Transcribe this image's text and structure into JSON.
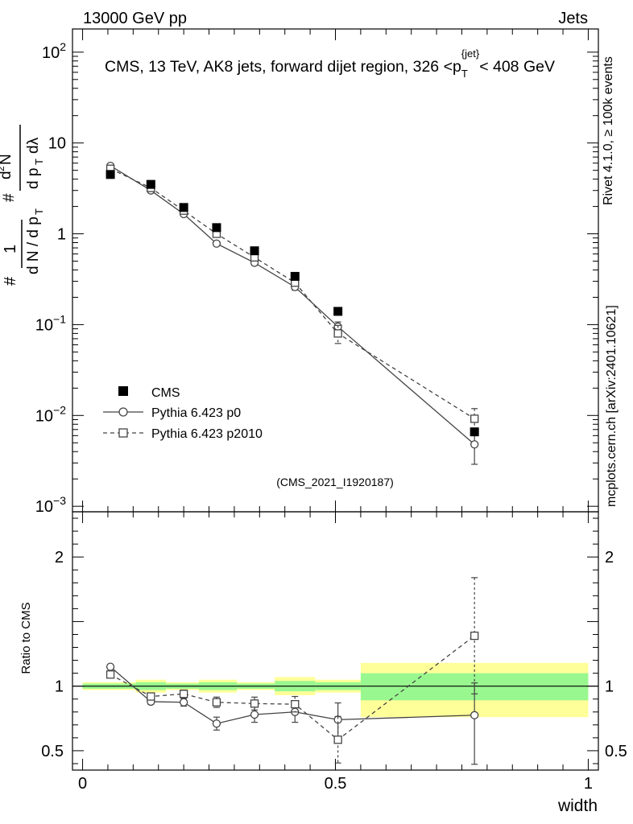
{
  "header": {
    "left": "13000 GeV pp",
    "right": "Jets"
  },
  "side_labels": {
    "rivet": "Rivet 4.1.0, ≥ 100k events",
    "mcplots": "mcplots.cern.ch [arXiv:2401.10621]"
  },
  "chart_data": [
    {
      "type": "scatter",
      "panel": "main",
      "title": "CMS, 13 TeV, AK8 jets, forward dijet region, 326 <p_T^{jet}< 408 GeV",
      "title_parts": {
        "pre": "CMS, 13 TeV, AK8 jets, forward dijet region, 326 <p",
        "sub": "T",
        "sup": "{jet}",
        "post": "< 408 GeV"
      },
      "ylabel": "1/dN/dp_T d²N/dp_T dλ",
      "yscale": "log",
      "ylim": [
        0.00087,
        180
      ],
      "xlim": [
        -0.02,
        1.02
      ],
      "y_ticks": [
        {
          "value": 100,
          "base": "10",
          "exp": "2"
        },
        {
          "value": 10,
          "base": "10",
          "exp": ""
        },
        {
          "value": 1,
          "base": "1",
          "exp": ""
        },
        {
          "value": 0.1,
          "base": "10",
          "exp": "−1"
        },
        {
          "value": 0.01,
          "base": "10",
          "exp": "−2"
        },
        {
          "value": 0.001,
          "base": "10",
          "exp": "−3"
        }
      ],
      "legend": [
        {
          "label": "CMS",
          "style": "filled-square"
        },
        {
          "label": "Pythia 6.423 p0",
          "style": "solid-circle"
        },
        {
          "label": "Pythia 6.423 p2010",
          "style": "dashed-square"
        }
      ],
      "watermark": "(CMS_2021_I1920187)",
      "series": [
        {
          "name": "CMS",
          "x": [
            0.055,
            0.135,
            0.2,
            0.265,
            0.34,
            0.42,
            0.505,
            0.775
          ],
          "y": [
            4.5,
            3.5,
            1.95,
            1.17,
            0.65,
            0.34,
            0.14,
            0.0066
          ],
          "err_lo": [
            0,
            0,
            0,
            0,
            0,
            0,
            0,
            0
          ],
          "err_hi": [
            0,
            0,
            0,
            0,
            0,
            0,
            0,
            0
          ]
        },
        {
          "name": "Pythia 6.423 p0",
          "x": [
            0.055,
            0.135,
            0.2,
            0.265,
            0.34,
            0.42,
            0.505,
            0.775
          ],
          "y": [
            5.6,
            3.0,
            1.65,
            0.78,
            0.48,
            0.26,
            0.095,
            0.0048
          ],
          "err_lo": [
            0.1,
            0.07,
            0.05,
            0.04,
            0.03,
            0.02,
            0.012,
            0.0019
          ],
          "err_hi": [
            0.1,
            0.07,
            0.05,
            0.04,
            0.03,
            0.02,
            0.012,
            0.0019
          ]
        },
        {
          "name": "Pythia 6.423 p2010",
          "x": [
            0.055,
            0.135,
            0.2,
            0.265,
            0.34,
            0.42,
            0.505,
            0.775
          ],
          "y": [
            5.2,
            3.2,
            1.8,
            1.0,
            0.55,
            0.29,
            0.08,
            0.0092
          ],
          "err_lo": [
            0.1,
            0.07,
            0.05,
            0.04,
            0.03,
            0.02,
            0.018,
            0.0027
          ],
          "err_hi": [
            0.1,
            0.07,
            0.05,
            0.04,
            0.03,
            0.02,
            0.018,
            0.0027
          ]
        }
      ]
    },
    {
      "type": "scatter",
      "panel": "ratio",
      "ylabel": "Ratio to CMS",
      "xlabel": "width",
      "ylim": [
        0.35,
        2.35
      ],
      "xlim": [
        -0.02,
        1.02
      ],
      "y_ticks": [
        {
          "value": 0.5,
          "label": "0.5"
        },
        {
          "value": 1,
          "label": "1"
        },
        {
          "value": 2,
          "label": "2"
        }
      ],
      "x_ticks": [
        {
          "value": 0,
          "label": "0"
        },
        {
          "value": 0.5,
          "label": "0.5"
        },
        {
          "value": 1,
          "label": "1"
        }
      ],
      "bands": [
        {
          "x0": 0.0,
          "x1": 0.105,
          "in_lo": 0.98,
          "in_hi": 1.02,
          "out_lo": 0.97,
          "out_hi": 1.03
        },
        {
          "x0": 0.105,
          "x1": 0.165,
          "in_lo": 0.97,
          "in_hi": 1.03,
          "out_lo": 0.95,
          "out_hi": 1.05
        },
        {
          "x0": 0.165,
          "x1": 0.23,
          "in_lo": 0.98,
          "in_hi": 1.02,
          "out_lo": 0.97,
          "out_hi": 1.03
        },
        {
          "x0": 0.23,
          "x1": 0.305,
          "in_lo": 0.97,
          "in_hi": 1.03,
          "out_lo": 0.95,
          "out_hi": 1.05
        },
        {
          "x0": 0.305,
          "x1": 0.38,
          "in_lo": 0.98,
          "in_hi": 1.02,
          "out_lo": 0.97,
          "out_hi": 1.03
        },
        {
          "x0": 0.38,
          "x1": 0.46,
          "in_lo": 0.96,
          "in_hi": 1.04,
          "out_lo": 0.93,
          "out_hi": 1.07
        },
        {
          "x0": 0.46,
          "x1": 0.55,
          "in_lo": 0.97,
          "in_hi": 1.03,
          "out_lo": 0.95,
          "out_hi": 1.05
        },
        {
          "x0": 0.55,
          "x1": 1.0,
          "in_lo": 0.89,
          "in_hi": 1.1,
          "out_lo": 0.76,
          "out_hi": 1.18
        }
      ],
      "series": [
        {
          "name": "Pythia 6.423 p0",
          "x": [
            0.055,
            0.135,
            0.2,
            0.265,
            0.34,
            0.42,
            0.505,
            0.775
          ],
          "y": [
            1.15,
            0.88,
            0.875,
            0.71,
            0.78,
            0.8,
            0.74,
            0.775
          ],
          "err_lo": [
            0.015,
            0.02,
            0.03,
            0.05,
            0.06,
            0.08,
            0.13,
            0.38
          ],
          "err_hi": [
            0.015,
            0.02,
            0.03,
            0.05,
            0.06,
            0.08,
            0.13,
            0.25
          ]
        },
        {
          "name": "Pythia 6.423 p2010",
          "x": [
            0.055,
            0.135,
            0.2,
            0.265,
            0.34,
            0.42,
            0.505,
            0.775
          ],
          "y": [
            1.09,
            0.92,
            0.94,
            0.875,
            0.865,
            0.86,
            0.585,
            1.39
          ],
          "err_lo": [
            0.015,
            0.02,
            0.03,
            0.04,
            0.05,
            0.06,
            0.18,
            0.45
          ],
          "err_hi": [
            0.015,
            0.02,
            0.03,
            0.04,
            0.05,
            0.06,
            0.18,
            0.45
          ]
        }
      ]
    }
  ]
}
